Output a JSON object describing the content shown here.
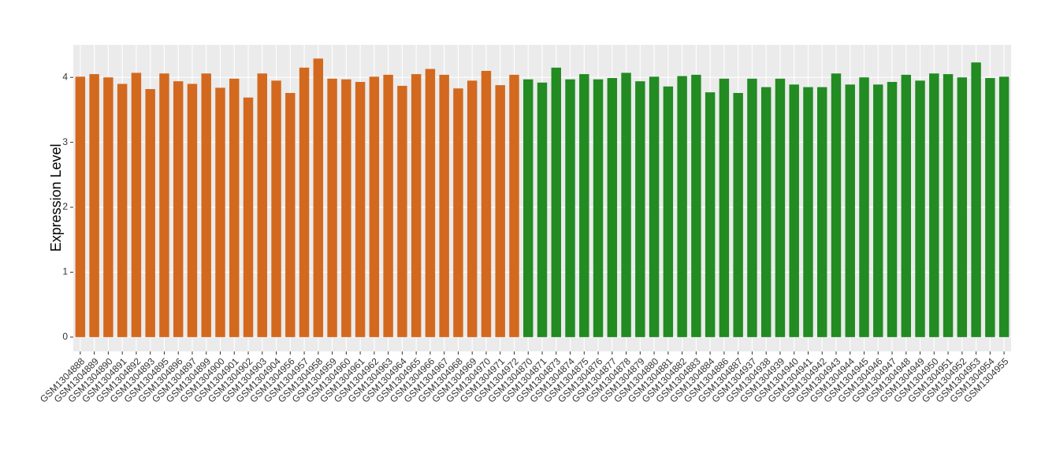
{
  "chart_data": {
    "type": "bar",
    "y_label": "Expression Level",
    "categories": [
      "GSM1304888",
      "GSM1304889",
      "GSM1304890",
      "GSM1304891",
      "GSM1304892",
      "GSM1304893",
      "GSM1304895",
      "GSM1304896",
      "GSM1304897",
      "GSM1304899",
      "GSM1304900",
      "GSM1304901",
      "GSM1304902",
      "GSM1304903",
      "GSM1304904",
      "GSM1304956",
      "GSM1304957",
      "GSM1304958",
      "GSM1304959",
      "GSM1304960",
      "GSM1304961",
      "GSM1304962",
      "GSM1304963",
      "GSM1304964",
      "GSM1304965",
      "GSM1304966",
      "GSM1304967",
      "GSM1304968",
      "GSM1304969",
      "GSM1304970",
      "GSM1304971",
      "GSM1304972",
      "GSM1304870",
      "GSM1304871",
      "GSM1304873",
      "GSM1304874",
      "GSM1304875",
      "GSM1304876",
      "GSM1304877",
      "GSM1304878",
      "GSM1304879",
      "GSM1304880",
      "GSM1304881",
      "GSM1304882",
      "GSM1304883",
      "GSM1304884",
      "GSM1304886",
      "GSM1304887",
      "GSM1304937",
      "GSM1304938",
      "GSM1304939",
      "GSM1304940",
      "GSM1304941",
      "GSM1304942",
      "GSM1304943",
      "GSM1304944",
      "GSM1304945",
      "GSM1304946",
      "GSM1304947",
      "GSM1304948",
      "GSM1304949",
      "GSM1304950",
      "GSM1304951",
      "GSM1304952",
      "GSM1304953",
      "GSM1304954",
      "GSM1304955"
    ],
    "values": [
      4.01,
      4.05,
      4.0,
      3.9,
      4.07,
      3.82,
      4.06,
      3.94,
      3.9,
      4.06,
      3.84,
      3.98,
      3.69,
      4.06,
      3.95,
      3.76,
      4.15,
      4.29,
      3.98,
      3.97,
      3.93,
      4.01,
      4.04,
      3.87,
      4.05,
      4.13,
      4.04,
      3.83,
      3.95,
      4.1,
      3.88,
      4.04,
      3.97,
      3.92,
      4.15,
      3.97,
      4.05,
      3.97,
      3.99,
      4.07,
      3.94,
      4.01,
      3.86,
      4.02,
      4.04,
      3.77,
      3.98,
      3.76,
      3.98,
      3.85,
      3.98,
      3.89,
      3.85,
      3.85,
      4.06,
      3.89,
      4.0,
      3.89,
      3.93,
      4.04,
      3.95,
      4.06,
      4.05,
      4.0,
      4.23,
      3.99,
      4.01
    ],
    "colors": [
      "#d2691e",
      "#d2691e",
      "#d2691e",
      "#d2691e",
      "#d2691e",
      "#d2691e",
      "#d2691e",
      "#d2691e",
      "#d2691e",
      "#d2691e",
      "#d2691e",
      "#d2691e",
      "#d2691e",
      "#d2691e",
      "#d2691e",
      "#d2691e",
      "#d2691e",
      "#d2691e",
      "#d2691e",
      "#d2691e",
      "#d2691e",
      "#d2691e",
      "#d2691e",
      "#d2691e",
      "#d2691e",
      "#d2691e",
      "#d2691e",
      "#d2691e",
      "#d2691e",
      "#d2691e",
      "#d2691e",
      "#d2691e",
      "#228b22",
      "#228b22",
      "#228b22",
      "#228b22",
      "#228b22",
      "#228b22",
      "#228b22",
      "#228b22",
      "#228b22",
      "#228b22",
      "#228b22",
      "#228b22",
      "#228b22",
      "#228b22",
      "#228b22",
      "#228b22",
      "#228b22",
      "#228b22",
      "#228b22",
      "#228b22",
      "#228b22",
      "#228b22",
      "#228b22",
      "#228b22",
      "#228b22",
      "#228b22",
      "#228b22",
      "#228b22",
      "#228b22",
      "#228b22",
      "#228b22",
      "#228b22",
      "#228b22",
      "#228b22",
      "#228b22"
    ],
    "ylim": [
      -0.22,
      4.5
    ],
    "yticks": [
      0,
      1,
      2,
      3,
      4
    ],
    "grid": true
  }
}
